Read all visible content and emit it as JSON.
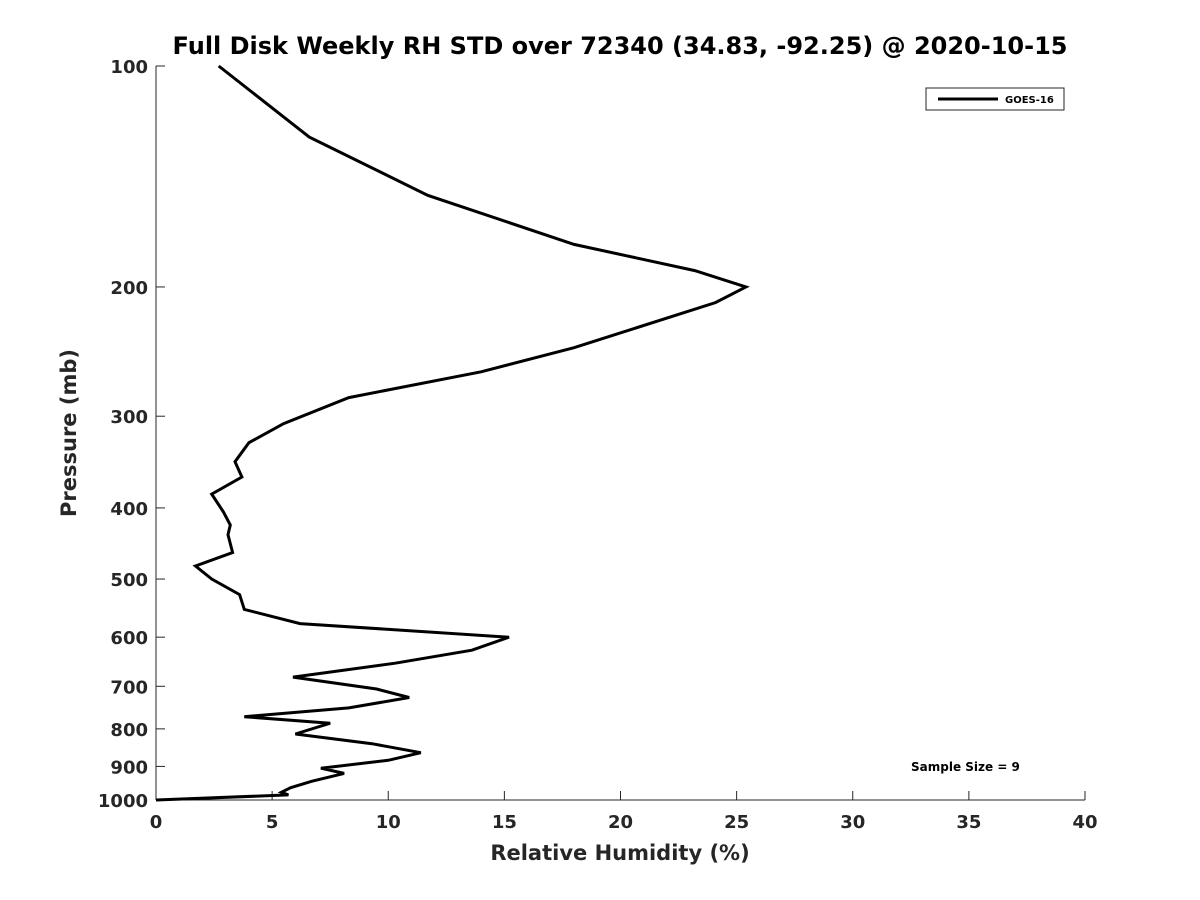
{
  "chart_data": {
    "type": "line",
    "title": "Full Disk Weekly RH STD over 72340 (34.83, -92.25) @ 2020-10-15",
    "xlabel": "Relative Humidity (%)",
    "ylabel": "Pressure (mb)",
    "xlim": [
      0,
      40
    ],
    "ylim": [
      100,
      1000
    ],
    "y_scale": "log",
    "y_reversed": true,
    "grid": false,
    "legend_position": "top-right",
    "x_ticks": [
      "0",
      "5",
      "10",
      "15",
      "20",
      "25",
      "30",
      "35",
      "40"
    ],
    "y_ticks": [
      "100",
      "200",
      "300",
      "400",
      "500",
      "600",
      "700",
      "800",
      "900",
      "1000"
    ],
    "annotation": "Sample Size = 9",
    "series": [
      {
        "name": "GOES-16",
        "color": "#000000",
        "x": [
          2.7,
          6.6,
          11.7,
          18.0,
          23.2,
          25.4,
          24.1,
          18.0,
          14.0,
          8.3,
          5.5,
          4.0,
          3.4,
          3.7,
          2.4,
          2.9,
          3.2,
          3.1,
          3.3,
          1.7,
          2.4,
          3.6,
          3.8,
          6.2,
          15.2,
          13.6,
          10.3,
          5.9,
          9.5,
          10.9,
          8.3,
          3.8,
          7.5,
          6.0,
          9.3,
          11.4,
          10.0,
          7.1,
          8.1,
          6.7,
          5.8,
          5.4,
          5.7,
          0.0
        ],
        "y": [
          100,
          125,
          150,
          175,
          190,
          200,
          210,
          242,
          261,
          283,
          307,
          326,
          346,
          363,
          383,
          405,
          422,
          435,
          460,
          480,
          500,
          525,
          550,
          575,
          600,
          625,
          651,
          680,
          706,
          725,
          749,
          770,
          786,
          813,
          838,
          862,
          883,
          905,
          920,
          943,
          962,
          976,
          984,
          1000
        ]
      }
    ]
  }
}
